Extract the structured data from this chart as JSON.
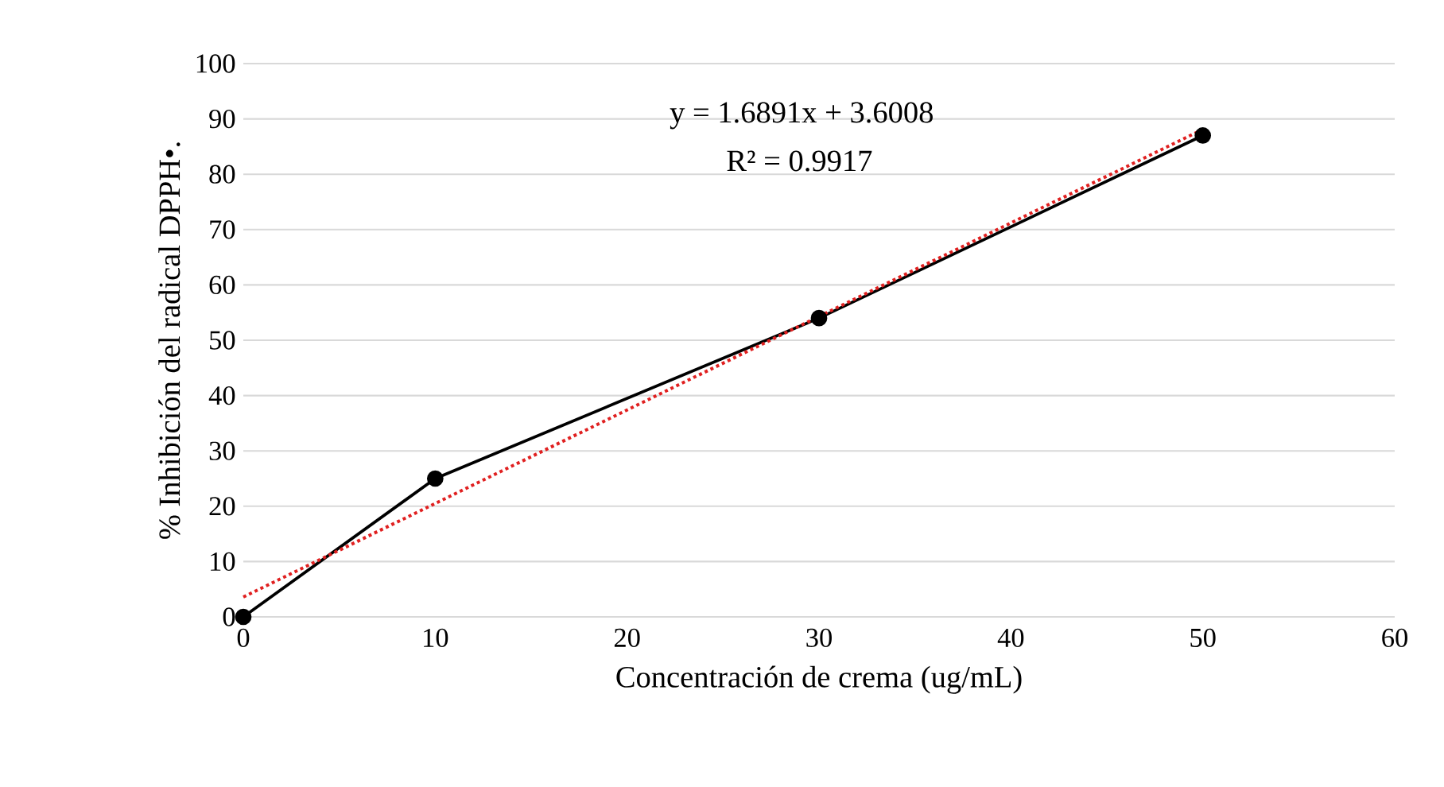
{
  "chart_data": {
    "type": "line",
    "xlabel": "Concentración de crema (ug/mL)",
    "ylabel": "% Inhibición del radical  DPPH•.",
    "xlim": [
      0,
      60
    ],
    "xticks": [
      0,
      10,
      20,
      30,
      40,
      50,
      60
    ],
    "ylim": [
      0,
      100
    ],
    "yticks": [
      0,
      10,
      20,
      30,
      40,
      50,
      60,
      70,
      80,
      90,
      100
    ],
    "grid": "y",
    "series": [
      {
        "color": "#000000",
        "x": [
          0,
          10,
          30,
          50
        ],
        "values": [
          0,
          25,
          54,
          87
        ],
        "marker": "circle",
        "line_style": "solid"
      },
      {
        "type": "line",
        "color": "#e02020",
        "x": [
          0,
          50
        ],
        "values": [
          3.6,
          88.1
        ],
        "marker": "none",
        "line_style": "dotted"
      }
    ],
    "annotations": [
      "y = 1.6891x + 3.6008",
      "R² = 0.9917"
    ]
  }
}
